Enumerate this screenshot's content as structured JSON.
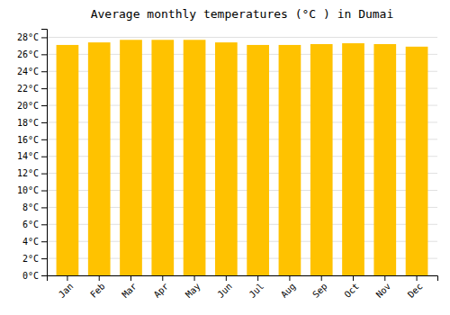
{
  "chart_data": {
    "type": "bar",
    "title": "Average monthly temperatures (°C ) in Dumai",
    "categories": [
      "Jan",
      "Feb",
      "Mar",
      "Apr",
      "May",
      "Jun",
      "Jul",
      "Aug",
      "Sep",
      "Oct",
      "Nov",
      "Dec"
    ],
    "values": [
      27.1,
      27.4,
      27.7,
      27.7,
      27.7,
      27.4,
      27.1,
      27.1,
      27.2,
      27.3,
      27.2,
      26.9
    ],
    "color": "#FFC200",
    "ylim": [
      0,
      29
    ],
    "yticks": [
      {
        "value": 0,
        "label": "0°C"
      },
      {
        "value": 2,
        "label": "2°C"
      },
      {
        "value": 4,
        "label": "4°C"
      },
      {
        "value": 6,
        "label": "6°C"
      },
      {
        "value": 8,
        "label": "8°C"
      },
      {
        "value": 10,
        "label": "10°C"
      },
      {
        "value": 12,
        "label": "12°C"
      },
      {
        "value": 14,
        "label": "14°C"
      },
      {
        "value": 16,
        "label": "16°C"
      },
      {
        "value": 18,
        "label": "18°C"
      },
      {
        "value": 20,
        "label": "20°C"
      },
      {
        "value": 22,
        "label": "22°C"
      },
      {
        "value": 24,
        "label": "24°C"
      },
      {
        "value": 26,
        "label": "26°C"
      },
      {
        "value": 28,
        "label": "28°C"
      }
    ],
    "grid": true
  }
}
